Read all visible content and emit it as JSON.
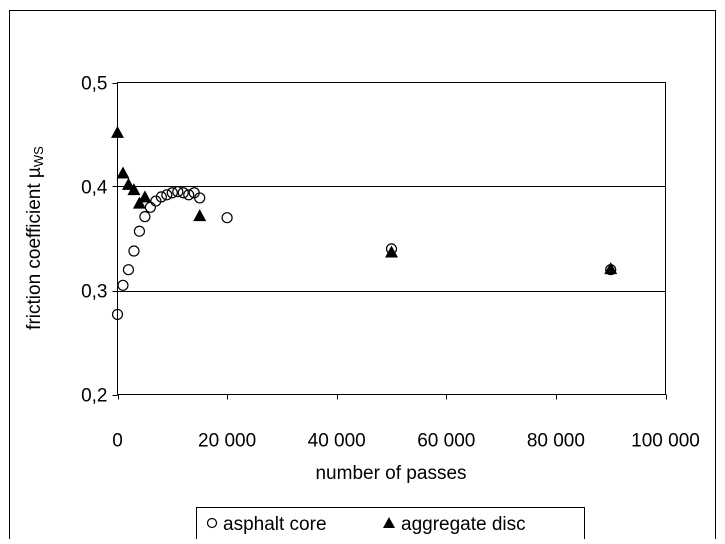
{
  "chart_data": {
    "type": "scatter",
    "xlabel": "number of passes",
    "ylabel": "friction coefficient µ",
    "ylabel_sub": "WS",
    "xlim": [
      0,
      100000
    ],
    "ylim": [
      0.2,
      0.5
    ],
    "x_ticks": [
      0,
      20000,
      40000,
      60000,
      80000,
      100000
    ],
    "x_tick_labels": [
      "0",
      "20 000",
      "40 000",
      "60 000",
      "80 000",
      "100 000"
    ],
    "y_ticks": [
      0.2,
      0.3,
      0.4,
      0.5
    ],
    "y_tick_labels": [
      "0,2",
      "0,3",
      "0,4",
      "0,5"
    ],
    "grid": "horizontal",
    "legend_position": "bottom",
    "series": [
      {
        "name": "asphalt core",
        "marker": "open-circle",
        "x": [
          0,
          1000,
          2000,
          3000,
          4000,
          5000,
          6000,
          7000,
          8000,
          9000,
          10000,
          11000,
          12000,
          13000,
          14000,
          15000,
          20000,
          50000,
          90000
        ],
        "y": [
          0.277,
          0.305,
          0.32,
          0.338,
          0.357,
          0.371,
          0.38,
          0.386,
          0.39,
          0.392,
          0.394,
          0.395,
          0.394,
          0.392,
          0.394,
          0.389,
          0.37,
          0.34,
          0.32
        ]
      },
      {
        "name": "aggregate disc",
        "marker": "filled-triangle",
        "x": [
          0,
          1000,
          2000,
          3000,
          4000,
          5000,
          15000,
          50000,
          90000
        ],
        "y": [
          0.452,
          0.413,
          0.402,
          0.397,
          0.384,
          0.39,
          0.372,
          0.337,
          0.321
        ]
      }
    ]
  }
}
